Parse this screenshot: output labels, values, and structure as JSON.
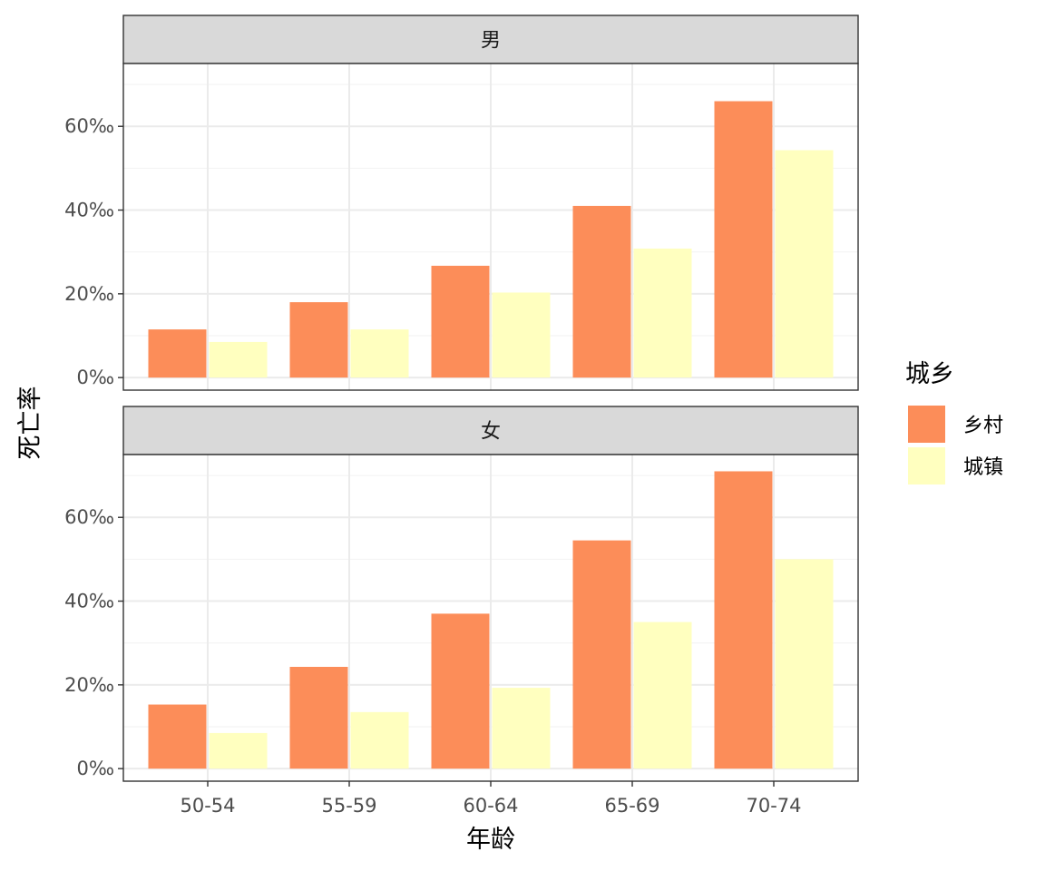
{
  "chart_data": {
    "type": "bar",
    "xlabel": "年龄",
    "ylabel": "死亡率",
    "categories": [
      "50-54",
      "55-59",
      "60-64",
      "65-69",
      "70-74"
    ],
    "ylim": [
      -3,
      75
    ],
    "yticks": [
      0,
      20,
      40,
      60
    ],
    "ytick_labels": [
      "0‰",
      "20‰",
      "40‰",
      "60‰"
    ],
    "grid": true,
    "legend": {
      "title": "城乡",
      "position": "right",
      "entries": [
        {
          "label": "乡村",
          "color": "#FC8D59"
        },
        {
          "label": "城镇",
          "color": "#FFFFBF"
        }
      ]
    },
    "panels": [
      {
        "strip": "男",
        "series": [
          {
            "name": "乡村",
            "values": [
              11.5,
              18.0,
              26.7,
              41.0,
              66.0
            ]
          },
          {
            "name": "城镇",
            "values": [
              8.5,
              11.5,
              20.3,
              30.8,
              54.3
            ]
          }
        ]
      },
      {
        "strip": "女",
        "series": [
          {
            "name": "乡村",
            "values": [
              15.3,
              24.3,
              37.0,
              54.5,
              71.0
            ]
          },
          {
            "name": "城镇",
            "values": [
              8.5,
              13.5,
              19.3,
              35.0,
              50.0
            ]
          }
        ]
      }
    ]
  }
}
